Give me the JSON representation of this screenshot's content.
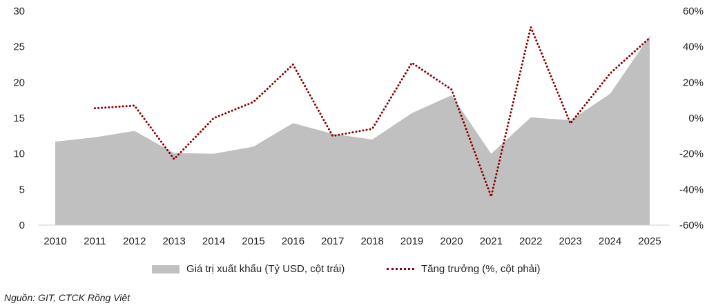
{
  "chart_data": {
    "type": "area",
    "categories": [
      "2010",
      "2011",
      "2012",
      "2013",
      "2014",
      "2015",
      "2016",
      "2017",
      "2018",
      "2019",
      "2020",
      "2021",
      "2022",
      "2023",
      "2024",
      "2025"
    ],
    "series": [
      {
        "name": "Giá trị xuất khẩu (Tỷ USD, cột trái)",
        "type": "area",
        "axis": "left",
        "color": "#c0c0c0",
        "values": [
          11.7,
          12.3,
          13.2,
          10.1,
          10.0,
          11.0,
          14.3,
          12.8,
          12.0,
          15.7,
          18.2,
          10.0,
          15.1,
          14.7,
          18.4,
          26.5
        ]
      },
      {
        "name": "Tăng trưởng (%, cột phải)",
        "type": "line",
        "style": "dotted",
        "axis": "right",
        "color": "#8b0000",
        "values": [
          null,
          5.5,
          7,
          -23,
          0,
          9,
          30,
          -10,
          -6,
          31,
          16,
          -44,
          51,
          -3,
          25,
          45
        ]
      }
    ],
    "y_left": {
      "ylim": [
        0,
        30
      ],
      "ticks": [
        "0",
        "5",
        "10",
        "15",
        "20",
        "25",
        "30"
      ]
    },
    "y_right": {
      "ylim": [
        -60,
        60
      ],
      "ticks": [
        "-60%",
        "-40%",
        "-20%",
        "0%",
        "20%",
        "40%",
        "60%"
      ]
    },
    "grid": false,
    "legend_position": "bottom"
  },
  "legend": {
    "area_label": "Giá trị xuất khẩu (Tỷ USD, cột trái)",
    "line_label": "Tăng trưởng (%, cột phải)"
  },
  "source": "Nguồn: GIT, CTCK Rồng Việt"
}
